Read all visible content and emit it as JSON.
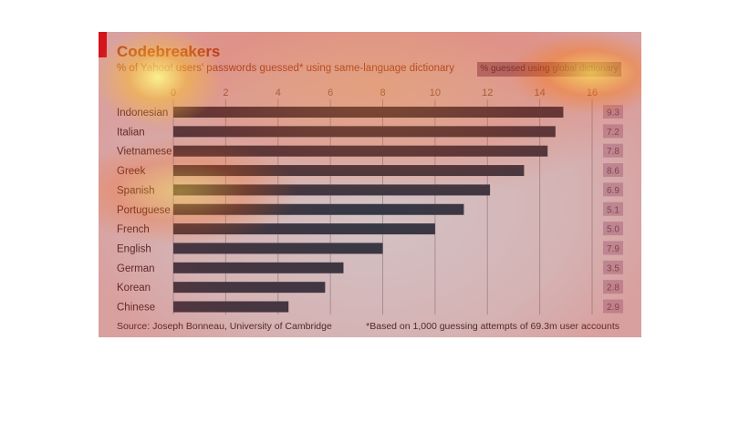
{
  "chart_data": {
    "type": "bar",
    "orientation": "horizontal",
    "title": "Codebreakers",
    "subtitle": "% of Yahoo! users' passwords guessed* using same-language dictionary",
    "categories": [
      "Indonesian",
      "Italian",
      "Vietnamese",
      "Greek",
      "Spanish",
      "Portuguese",
      "French",
      "English",
      "German",
      "Korean",
      "Chinese"
    ],
    "series": [
      {
        "values": [
          14.9,
          14.6,
          14.3,
          13.4,
          12.1,
          11.1,
          10.0,
          8.0,
          6.5,
          5.8,
          4.4
        ]
      },
      {
        "name": "% guessed using global dictionary",
        "values": [
          9.3,
          7.2,
          7.8,
          8.6,
          6.9,
          5.1,
          5.0,
          7.9,
          3.5,
          2.8,
          2.9
        ]
      }
    ],
    "x_ticks": [
      "0",
      "2",
      "4",
      "6",
      "8",
      "10",
      "12",
      "14",
      "16"
    ],
    "xlim": [
      0,
      16
    ],
    "grid": true,
    "legend_position": "top-right",
    "source": "Source: Joseph Bonneau, University of Cambridge",
    "footnote": "*Based on 1,000 guessing attempts of 69.3m user accounts"
  },
  "colors": {
    "bar": "#1e3a4a",
    "grid": "#9aa4ab",
    "tick_label": "#7a6a50",
    "category_label": "#2a2a2a",
    "value_box": "#b0a8bb",
    "value_text": "#5a5060",
    "accent": "#cc0c1c"
  }
}
